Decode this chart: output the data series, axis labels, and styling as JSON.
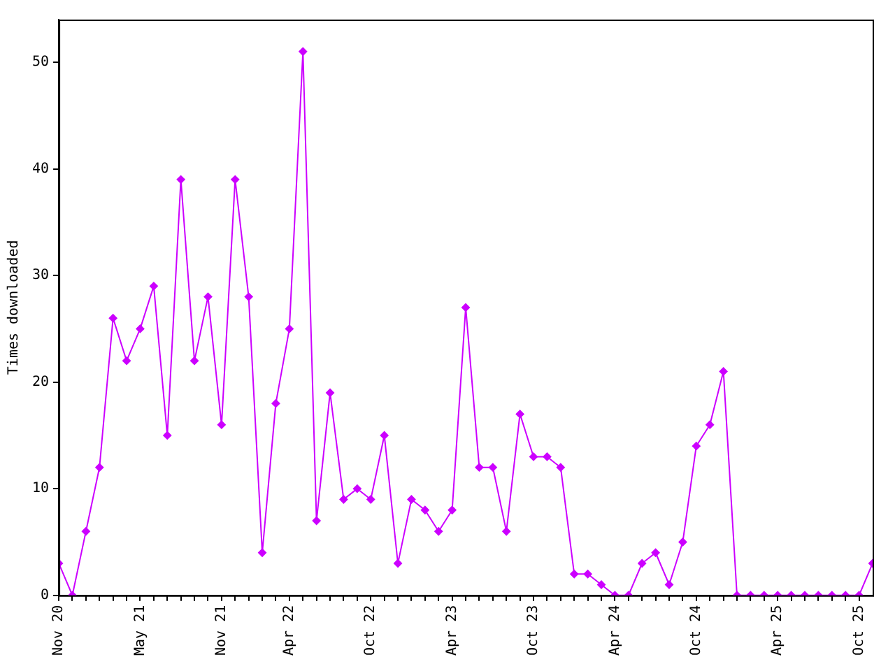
{
  "chart_data": {
    "type": "line",
    "ylabel": "Times downloaded",
    "x": [
      "2020-11",
      "2020-12",
      "2021-01",
      "2021-02",
      "2021-03",
      "2021-04",
      "2021-05",
      "2021-06",
      "2021-07",
      "2021-08",
      "2021-09",
      "2021-10",
      "2021-11",
      "2021-12",
      "2022-01",
      "2022-02",
      "2022-03",
      "2022-04",
      "2022-05",
      "2022-06",
      "2022-07",
      "2022-08",
      "2022-09",
      "2022-10",
      "2022-11",
      "2022-12",
      "2023-01",
      "2023-02",
      "2023-03",
      "2023-04",
      "2023-05",
      "2023-06",
      "2023-07",
      "2023-08",
      "2023-09",
      "2023-10",
      "2023-11",
      "2023-12",
      "2024-01",
      "2024-02",
      "2024-03",
      "2024-04",
      "2024-05",
      "2024-06",
      "2024-07",
      "2024-08",
      "2024-09",
      "2024-10",
      "2024-11",
      "2024-12",
      "2025-01",
      "2025-02",
      "2025-03",
      "2025-04",
      "2025-05",
      "2025-06",
      "2025-07",
      "2025-08",
      "2025-09",
      "2025-10",
      "2025-11"
    ],
    "series": [
      {
        "color": "#cc00ff",
        "values": [
          3,
          0,
          6,
          12,
          26,
          22,
          25,
          29,
          15,
          39,
          22,
          28,
          16,
          39,
          28,
          4,
          18,
          25,
          51,
          7,
          19,
          9,
          10,
          9,
          15,
          3,
          9,
          8,
          6,
          8,
          27,
          12,
          12,
          6,
          17,
          13,
          13,
          12,
          2,
          2,
          1,
          0,
          0,
          3,
          4,
          1,
          5,
          14,
          16,
          21,
          0,
          0,
          0,
          0,
          0,
          0,
          0,
          0,
          0,
          0,
          3
        ]
      }
    ],
    "xlim": [
      "2020-11",
      "2025-11"
    ],
    "xticks": [
      {
        "value": "2020-11",
        "label": "Nov 20"
      },
      {
        "value": "2020-12",
        "label": null
      },
      {
        "value": "2021-01",
        "label": null
      },
      {
        "value": "2021-02",
        "label": null
      },
      {
        "value": "2021-03",
        "label": null
      },
      {
        "value": "2021-04",
        "label": null
      },
      {
        "value": "2021-05",
        "label": "May 21"
      },
      {
        "value": "2021-06",
        "label": null
      },
      {
        "value": "2021-07",
        "label": null
      },
      {
        "value": "2021-08",
        "label": null
      },
      {
        "value": "2021-09",
        "label": null
      },
      {
        "value": "2021-10",
        "label": null
      },
      {
        "value": "2021-11",
        "label": "Nov 21"
      },
      {
        "value": "2021-12",
        "label": null
      },
      {
        "value": "2022-01",
        "label": null
      },
      {
        "value": "2022-02",
        "label": null
      },
      {
        "value": "2022-03",
        "label": null
      },
      {
        "value": "2022-04",
        "label": "Apr 22"
      },
      {
        "value": "2022-05",
        "label": null
      },
      {
        "value": "2022-06",
        "label": null
      },
      {
        "value": "2022-07",
        "label": null
      },
      {
        "value": "2022-08",
        "label": null
      },
      {
        "value": "2022-09",
        "label": null
      },
      {
        "value": "2022-10",
        "label": "Oct 22"
      },
      {
        "value": "2022-11",
        "label": null
      },
      {
        "value": "2022-12",
        "label": null
      },
      {
        "value": "2023-01",
        "label": null
      },
      {
        "value": "2023-02",
        "label": null
      },
      {
        "value": "2023-03",
        "label": null
      },
      {
        "value": "2023-04",
        "label": "Apr 23"
      },
      {
        "value": "2023-05",
        "label": null
      },
      {
        "value": "2023-06",
        "label": null
      },
      {
        "value": "2023-07",
        "label": null
      },
      {
        "value": "2023-08",
        "label": null
      },
      {
        "value": "2023-09",
        "label": null
      },
      {
        "value": "2023-10",
        "label": "Oct 23"
      },
      {
        "value": "2023-11",
        "label": null
      },
      {
        "value": "2023-12",
        "label": null
      },
      {
        "value": "2024-01",
        "label": null
      },
      {
        "value": "2024-02",
        "label": null
      },
      {
        "value": "2024-03",
        "label": null
      },
      {
        "value": "2024-04",
        "label": "Apr 24"
      },
      {
        "value": "2024-05",
        "label": null
      },
      {
        "value": "2024-06",
        "label": null
      },
      {
        "value": "2024-07",
        "label": null
      },
      {
        "value": "2024-08",
        "label": null
      },
      {
        "value": "2024-09",
        "label": null
      },
      {
        "value": "2024-10",
        "label": "Oct 24"
      },
      {
        "value": "2024-11",
        "label": null
      },
      {
        "value": "2024-12",
        "label": null
      },
      {
        "value": "2025-01",
        "label": null
      },
      {
        "value": "2025-02",
        "label": null
      },
      {
        "value": "2025-03",
        "label": null
      },
      {
        "value": "2025-04",
        "label": "Apr 25"
      },
      {
        "value": "2025-05",
        "label": null
      },
      {
        "value": "2025-06",
        "label": null
      },
      {
        "value": "2025-07",
        "label": null
      },
      {
        "value": "2025-08",
        "label": null
      },
      {
        "value": "2025-09",
        "label": null
      },
      {
        "value": "2025-10",
        "label": "Oct 25"
      }
    ],
    "ylim": [
      0,
      54
    ],
    "yticks": [
      0,
      10,
      20,
      30,
      40,
      50
    ],
    "grid": false,
    "legend": false,
    "marker": "diamond",
    "line_style": "solid"
  }
}
